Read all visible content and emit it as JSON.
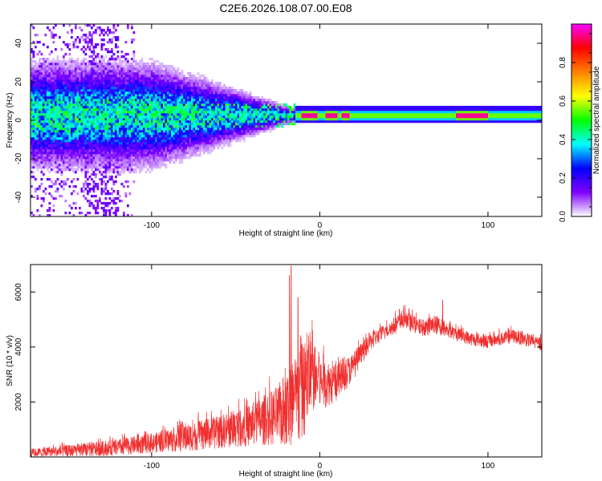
{
  "title": "C2E6.2026.108.07.00.E08",
  "chart_data": [
    {
      "type": "heatmap",
      "name": "spectrogram",
      "xlabel": "Height of straight line (km)",
      "ylabel": "Frequency (Hz)",
      "xlim": [
        -172,
        132
      ],
      "ylim": [
        -50,
        50
      ],
      "x_ticks": [
        -100,
        0,
        100
      ],
      "x_tick_labels": [
        "-100",
        "0",
        "100"
      ],
      "y_ticks": [
        -40,
        -20,
        0,
        20,
        40
      ],
      "y_tick_labels": [
        "-40",
        "-20",
        "0",
        "20",
        "40"
      ],
      "colorbar": {
        "label": "Normalized spectral amplitude",
        "range": [
          0,
          1
        ],
        "ticks": [
          0.0,
          0.2,
          0.4,
          0.6,
          0.8
        ],
        "tick_labels": [
          "0.0",
          "0.2",
          "0.4",
          "0.6",
          "0.8"
        ],
        "colors": [
          "#ffffff",
          "#8000ff",
          "#0000ff",
          "#00ffff",
          "#00ff00",
          "#ffff00",
          "#ff8000",
          "#ff0000",
          "#ff00ff"
        ]
      },
      "band": {
        "center_hz": 2,
        "half_width_far_hz": 25,
        "half_width_near_hz": 3,
        "transition_km": [
          -100,
          -15
        ],
        "intense_segments_km": [
          [
            -12,
            -2
          ],
          [
            3,
            10
          ],
          [
            12,
            17
          ],
          [
            80,
            100
          ]
        ]
      }
    },
    {
      "type": "line",
      "name": "snr",
      "color": "#f03030",
      "xlabel": "Height of straight line (km)",
      "ylabel": "SNR (10 * v/v)",
      "xlim": [
        -172,
        132
      ],
      "ylim": [
        0,
        7000
      ],
      "x_ticks": [
        -100,
        0,
        100
      ],
      "x_tick_labels": [
        "-100",
        "0",
        "100"
      ],
      "y_ticks": [
        2000,
        4000,
        6000
      ],
      "y_tick_labels": [
        "2000",
        "4000",
        "6000"
      ],
      "envelope": {
        "x": [
          -172,
          -140,
          -120,
          -100,
          -80,
          -60,
          -40,
          -25,
          -15,
          -10,
          -5,
          0,
          10,
          20,
          30,
          40,
          50,
          60,
          70,
          80,
          90,
          100,
          115,
          132
        ],
        "mean": [
          150,
          250,
          350,
          500,
          700,
          900,
          1200,
          1500,
          1900,
          2400,
          3000,
          2700,
          2700,
          3300,
          4200,
          4600,
          5000,
          4700,
          4800,
          4500,
          4300,
          4200,
          4400,
          4100
        ],
        "spread": [
          150,
          250,
          300,
          350,
          500,
          600,
          800,
          1100,
          1800,
          1800,
          1400,
          1000,
          700,
          500,
          300,
          300,
          350,
          300,
          350,
          250,
          250,
          250,
          250,
          250
        ]
      },
      "peaks": [
        {
          "x": -17,
          "y": 6950
        },
        {
          "x": -18,
          "y": 6600
        },
        {
          "x": -13,
          "y": 5800
        },
        {
          "x": 73,
          "y": 5700
        },
        {
          "x": 53,
          "y": 5400
        }
      ]
    }
  ]
}
